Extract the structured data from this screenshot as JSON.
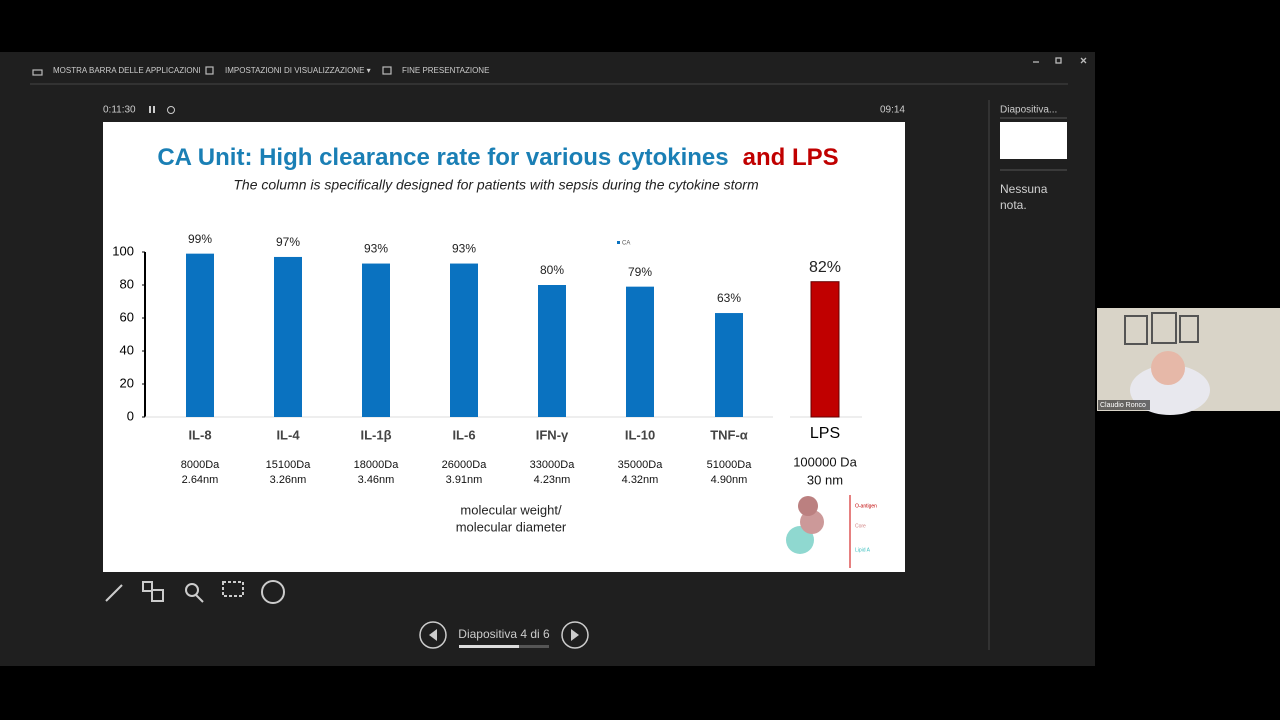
{
  "toolbar": {
    "items": [
      "MOSTRA BARRA DELLE APPLICAZIONI",
      "IMPOSTAZIONI DI VISUALIZZAZIONE ▾",
      "FINE PRESENTAZIONE"
    ]
  },
  "timer": "0:11:30",
  "clock": "09:14",
  "sidebar": {
    "title": "Diapositiva...",
    "notes": "Nessuna nota."
  },
  "nav": {
    "label": "Diapositiva 4 di 6"
  },
  "video": {
    "name": "Claudio Ronco"
  },
  "chart_data": {
    "type": "bar",
    "title": "CA Unit: High clearance rate for various cytokines",
    "title_highlight": "and LPS",
    "subtitle": "The column is specifically designed for patients with sepsis during the cytokine storm",
    "categories": [
      "IL-8",
      "IL-4",
      "IL-1β",
      "IL-6",
      "IFN-γ",
      "IL-10",
      "TNF-α",
      "LPS"
    ],
    "details": [
      [
        "8000Da",
        "2.64nm"
      ],
      [
        "15100Da",
        "3.26nm"
      ],
      [
        "18000Da",
        "3.46nm"
      ],
      [
        "26000Da",
        "3.91nm"
      ],
      [
        "33000Da",
        "4.23nm"
      ],
      [
        "35000Da",
        "4.32nm"
      ],
      [
        "51000Da",
        "4.90nm"
      ],
      [
        "100000 Da",
        "30 nm"
      ]
    ],
    "series": [
      {
        "name": "CA",
        "color": "#0a72c0",
        "values": [
          99,
          97,
          93,
          93,
          80,
          79,
          63,
          82
        ],
        "value_labels": [
          "99%",
          "97%",
          "93%",
          "93%",
          "80%",
          "79%",
          "63%",
          "82%"
        ],
        "colors": [
          "#0a72c0",
          "#0a72c0",
          "#0a72c0",
          "#0a72c0",
          "#0a72c0",
          "#0a72c0",
          "#0a72c0",
          "#c00000"
        ]
      }
    ],
    "ylim": [
      0,
      100
    ],
    "yticks": [
      0,
      20,
      40,
      60,
      80,
      100
    ],
    "x_note": [
      "molecular weight/",
      "molecular diameter"
    ],
    "image_labels": [
      "O-antigen",
      "Core",
      "Lipid A"
    ]
  }
}
